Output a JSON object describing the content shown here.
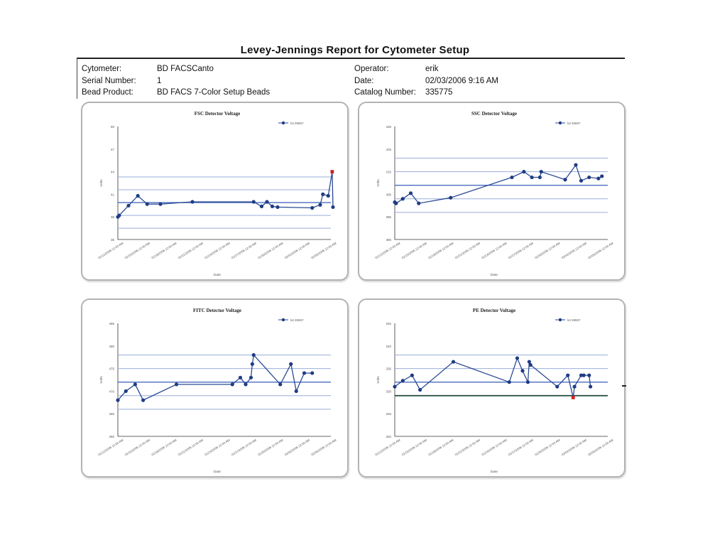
{
  "report": {
    "title": "Levey-Jennings Report for Cytometer Setup",
    "fields_left": [
      {
        "key": "Cytometer:",
        "value": "BD FACSCanto"
      },
      {
        "key": "Serial Number:",
        "value": "1"
      },
      {
        "key": "Bead Product:",
        "value": "BD FACS 7-Color Setup Beads"
      }
    ],
    "fields_right": [
      {
        "key": "Operator:",
        "value": "erik"
      },
      {
        "key": "Date:",
        "value": "02/03/2006 9:16 AM"
      },
      {
        "key": "Catalog Number:",
        "value": "335775"
      }
    ]
  },
  "chart_data": [
    {
      "type": "line",
      "title": "FSC Detector Voltage",
      "xlabel": "Date",
      "ylabel": "Volts",
      "legend": "lot 26557",
      "legend_position": "top-right",
      "x_tick_labels": [
        "01/12/2006 12:00 AM",
        "01/15/2006 12:00 AM",
        "01/18/2006 12:00 AM",
        "01/21/2006 12:00 AM",
        "01/24/2006 12:00 AM",
        "01/27/2006 12:00 AM",
        "01/30/2006 12:00 AM",
        "02/02/2006 12:00 AM",
        "02/05/2006 12:00 AM"
      ],
      "y_ticks": [
        "35",
        "38",
        "41",
        "44",
        "47",
        "50"
      ],
      "ylim": [
        35,
        50
      ],
      "control_lines": [
        36.5,
        38.2,
        39.9,
        41.6,
        43.3
      ],
      "center_line": 39.9,
      "x": [
        0.0,
        0.05,
        0.4,
        0.75,
        1.1,
        1.6,
        2.8,
        5.1,
        5.4,
        5.6,
        5.8,
        6.0,
        7.3,
        7.6,
        7.7,
        7.9,
        8.05,
        8.08
      ],
      "values": [
        38.0,
        38.2,
        39.5,
        40.8,
        39.7,
        39.7,
        40.0,
        40.0,
        39.4,
        40.0,
        39.4,
        39.3,
        39.2,
        39.6,
        41.0,
        40.8,
        44.0,
        39.3
      ],
      "out_of_range": [
        16
      ]
    },
    {
      "type": "line",
      "title": "SSC Detector Voltage",
      "xlabel": "Date",
      "ylabel": "Volts",
      "legend": "lot 26557",
      "legend_position": "top-right",
      "x_tick_labels": [
        "01/12/2006 12:00 AM",
        "01/15/2006 12:00 AM",
        "01/18/2006 12:00 AM",
        "01/21/2006 12:00 AM",
        "01/24/2006 12:00 AM",
        "01/27/2006 12:00 AM",
        "01/30/2006 12:00 AM",
        "02/02/2006 12:00 AM",
        "02/05/2006 12:00 AM"
      ],
      "y_ticks": [
        "385",
        "395",
        "405",
        "415",
        "425",
        "435"
      ],
      "ylim": [
        385,
        435
      ],
      "control_lines": [
        397,
        403,
        409,
        415,
        421
      ],
      "center_line": 409,
      "x": [
        0.0,
        0.05,
        0.3,
        0.6,
        0.9,
        2.1,
        4.4,
        4.85,
        5.15,
        5.45,
        5.5,
        6.4,
        6.8,
        7.0,
        7.3,
        7.65,
        7.78
      ],
      "values": [
        401.5,
        401.0,
        403.0,
        405.5,
        401.0,
        403.5,
        412.5,
        415.0,
        412.5,
        412.5,
        415.0,
        411.5,
        418.0,
        411.0,
        412.5,
        412.0,
        413.0
      ],
      "out_of_range": []
    },
    {
      "type": "line",
      "title": "FITC Detector Voltage",
      "xlabel": "Date",
      "ylabel": "Volts",
      "legend": "lot 26557",
      "legend_position": "top-right",
      "x_tick_labels": [
        "01/12/2006 12:00 AM",
        "01/15/2006 12:00 AM",
        "01/18/2006 12:00 AM",
        "01/21/2006 12:00 AM",
        "01/24/2006 12:00 AM",
        "01/27/2006 12:00 AM",
        "01/30/2006 12:00 AM",
        "02/02/2006 12:00 AM",
        "02/05/2006 12:00 AM"
      ],
      "y_ticks": [
        "460",
        "465",
        "470",
        "475",
        "480",
        "485"
      ],
      "ylim": [
        460,
        485
      ],
      "control_lines": [
        466,
        469,
        472,
        475,
        478
      ],
      "center_line": 472,
      "x": [
        0.0,
        0.3,
        0.65,
        0.95,
        2.2,
        4.3,
        4.6,
        4.8,
        5.0,
        5.05,
        5.1,
        6.1,
        6.5,
        6.7,
        7.0,
        7.3
      ],
      "values": [
        468.0,
        470.0,
        471.5,
        468.0,
        471.5,
        471.5,
        473.0,
        471.5,
        473.0,
        476.0,
        478.0,
        471.5,
        476.0,
        470.0,
        474.0,
        474.0
      ],
      "out_of_range": []
    },
    {
      "type": "line",
      "title": "PE Detector Voltage",
      "xlabel": "Date",
      "ylabel": "Volts",
      "legend": "lot 26557",
      "legend_position": "top-right",
      "x_tick_labels": [
        "01/12/2006 12:00 AM",
        "01/15/2006 12:00 AM",
        "01/18/2006 12:00 AM",
        "01/21/2006 12:00 AM",
        "01/24/2006 12:00 AM",
        "01/27/2006 12:00 AM",
        "01/30/2006 12:00 AM",
        "02/02/2006 12:00 AM",
        "02/05/2006 12:00 AM"
      ],
      "y_ticks": [
        "320",
        "325",
        "330",
        "335",
        "340",
        "345"
      ],
      "ylim": [
        320,
        345
      ],
      "control_lines": [
        329,
        332,
        335,
        338
      ],
      "center_line": 332,
      "low_limit_line": 329,
      "x": [
        0.0,
        0.3,
        0.65,
        0.95,
        2.2,
        4.3,
        4.6,
        4.8,
        5.0,
        5.05,
        5.1,
        6.1,
        6.5,
        6.7,
        6.75,
        7.0,
        7.1,
        7.3,
        7.35
      ],
      "values": [
        331.0,
        332.3,
        333.5,
        330.3,
        336.5,
        332.0,
        337.3,
        334.5,
        332.0,
        336.5,
        335.8,
        331.0,
        333.5,
        328.6,
        331.0,
        333.5,
        333.5,
        333.5,
        331.0
      ],
      "out_of_range": [
        13
      ]
    }
  ],
  "colors": {
    "series": "#2b4a94",
    "marker": "#1f3c84",
    "out_of_range_marker": "#cc2222",
    "control_line": "#9aaedb",
    "center_line": "#4a6cc0",
    "low_limit_line": "#1e4a3a",
    "panel_border": "#b3b3b3"
  }
}
